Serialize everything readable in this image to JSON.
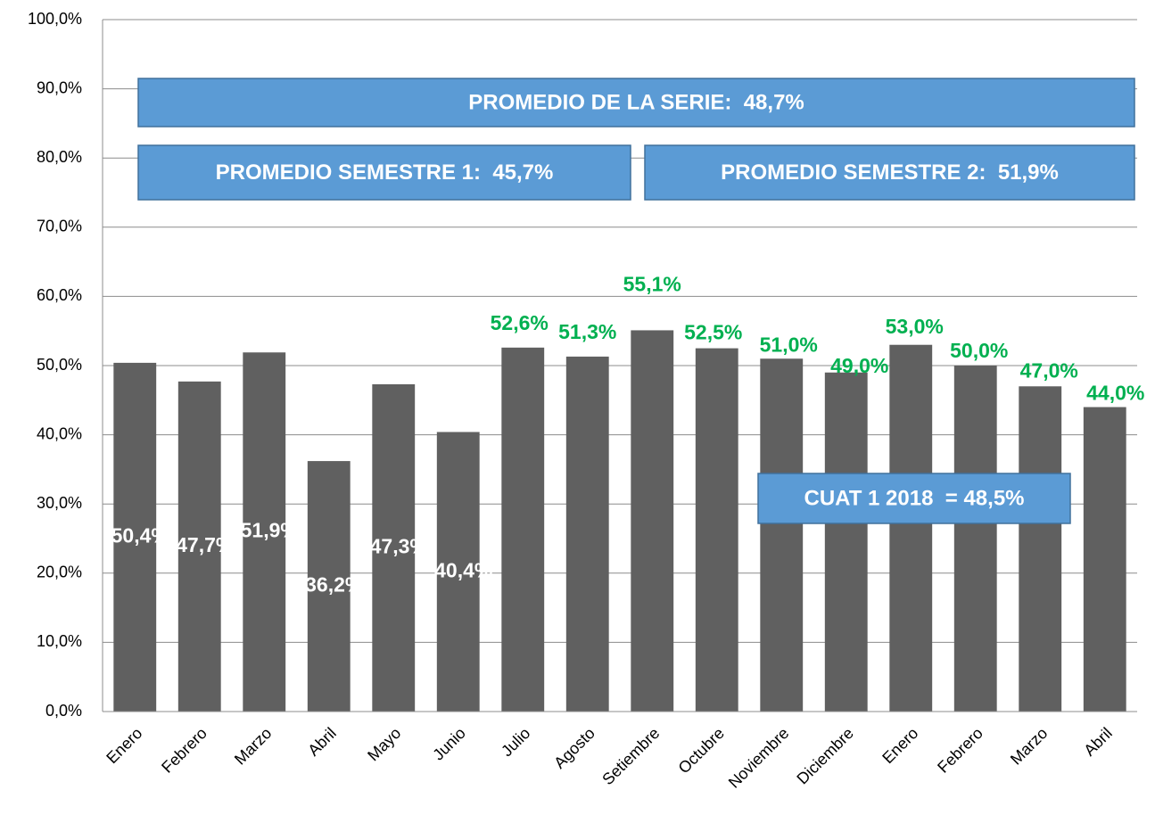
{
  "chart_data": {
    "type": "bar",
    "categories": [
      "Enero",
      "Febrero",
      "Marzo",
      "Abril",
      "Mayo",
      "Junio",
      "Julio",
      "Agosto",
      "Setiembre",
      "Octubre",
      "Noviembre",
      "Diciembre",
      "Enero",
      "Febrero",
      "Marzo",
      "Abril"
    ],
    "values": [
      50.4,
      47.7,
      51.9,
      36.2,
      47.3,
      40.4,
      52.6,
      51.3,
      55.1,
      52.5,
      51.0,
      49.0,
      53.0,
      50.0,
      47.0,
      44.0
    ],
    "value_labels": [
      "50,4%",
      "47,7%",
      "51,9%",
      "36,2%",
      "47,3%",
      "40,4%",
      "52,6%",
      "51,3%",
      "55,1%",
      "52,5%",
      "51,0%",
      "49,0%",
      "53,0%",
      "50,0%",
      "47,0%",
      "44,0%"
    ],
    "color": "#606060",
    "ylim": [
      0,
      100
    ],
    "yticks": [
      {
        "value": 0,
        "label": "0,0%"
      },
      {
        "value": 10,
        "label": "10,0%"
      },
      {
        "value": 20,
        "label": "20,0%"
      },
      {
        "value": 30,
        "label": "30,0%"
      },
      {
        "value": 40,
        "label": "40,0%"
      },
      {
        "value": 50,
        "label": "50,0%"
      },
      {
        "value": 60,
        "label": "60,0%"
      },
      {
        "value": 70,
        "label": "70,0%"
      },
      {
        "value": 80,
        "label": "80,0%"
      },
      {
        "value": 90,
        "label": "90,0%"
      },
      {
        "value": 100,
        "label": "100,0%"
      }
    ],
    "grid": true,
    "annotations": [
      "PROMEDIO DE LA SERIE:  48,7%",
      "PROMEDIO SEMESTRE 1:  45,7%",
      "PROMEDIO SEMESTRE 2:  51,9%",
      "CUAT 1 2018  = 48,5%"
    ]
  }
}
